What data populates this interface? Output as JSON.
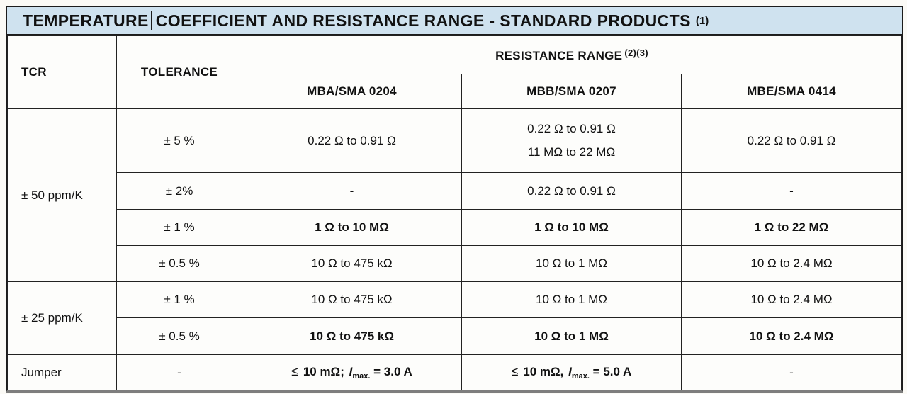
{
  "colors": {
    "title_bg": "#cfe2ef",
    "border": "#1c1c1c",
    "bottom_rule": "#7e7e7e",
    "page_bg": "#fbfaf6",
    "text": "#111111"
  },
  "title": {
    "part1": "TEMPERATURE",
    "part2": "COEFFICIENT AND RESISTANCE RANGE - STANDARD PRODUCTS",
    "sup": "(1)"
  },
  "header": {
    "tcr": "TCR",
    "tolerance": "TOLERANCE",
    "resistance_range": "RESISTANCE RANGE",
    "resistance_range_sup": "(2)(3)",
    "models": [
      "MBA/SMA 0204",
      "MBB/SMA 0207",
      "MBE/SMA 0414"
    ]
  },
  "body": {
    "tcr_50": "± 50 ppm/K",
    "tcr_25": "± 25 ppm/K",
    "tcr_jumper": "Jumper",
    "rows_50": [
      {
        "tol": "± 5 %",
        "mba": [
          "0.22 Ω to 0.91 Ω"
        ],
        "mbb": [
          "0.22 Ω to 0.91 Ω",
          "11 MΩ to 22 MΩ"
        ],
        "mbe": [
          "0.22 Ω to 0.91 Ω"
        ]
      },
      {
        "tol": "± 2%",
        "mba": [
          "-"
        ],
        "mbb": [
          "0.22 Ω to 0.91 Ω"
        ],
        "mbe": [
          "-"
        ]
      },
      {
        "tol": "± 1 %",
        "mba": [
          "1 Ω to 10 MΩ"
        ],
        "mbb": [
          "1 Ω to 10 MΩ"
        ],
        "mbe": [
          "1 Ω to 22 MΩ"
        ]
      },
      {
        "tol": "± 0.5 %",
        "mba": [
          "10 Ω to 475 kΩ"
        ],
        "mbb": [
          "10 Ω to 1 MΩ"
        ],
        "mbe": [
          "10 Ω to 2.4 MΩ"
        ]
      }
    ],
    "rows_25": [
      {
        "tol": "± 1 %",
        "mba": [
          "10 Ω to 475 kΩ"
        ],
        "mbb": [
          "10 Ω to 1 MΩ"
        ],
        "mbe": [
          "10 Ω to 2.4 MΩ"
        ]
      },
      {
        "tol": "± 0.5 %",
        "mba": [
          "10 Ω to 475 kΩ"
        ],
        "mbb": [
          "10 Ω to 1 MΩ"
        ],
        "mbe": [
          "10 Ω to 2.4 MΩ"
        ]
      }
    ],
    "jumper": {
      "tol": "-",
      "mba": {
        "leq": "≤",
        "value": "10 mΩ;",
        "sym": "I",
        "sub": "max.",
        "eq": "= 3.0 A"
      },
      "mbb": {
        "leq": "≤",
        "value": "10 mΩ,",
        "sym": "I",
        "sub": "max.",
        "eq": "= 5.0 A"
      },
      "mbe": "-"
    }
  }
}
